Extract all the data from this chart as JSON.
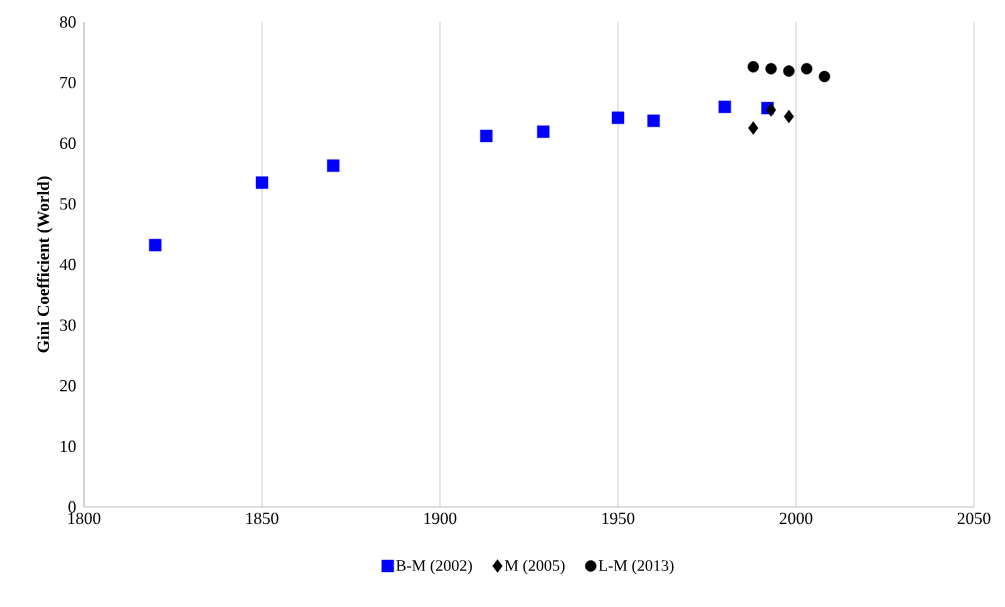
{
  "chart_data": {
    "type": "scatter",
    "ylabel": "Gini Coefficient (World)",
    "xlim": [
      1800,
      2050
    ],
    "xticks": [
      1800,
      1850,
      1900,
      1950,
      2000,
      2050
    ],
    "ylim": [
      0,
      80
    ],
    "yticks": [
      0,
      10,
      20,
      30,
      40,
      50,
      60,
      70,
      80
    ],
    "grid": "x",
    "legend": "bottom",
    "series": [
      {
        "name": "B-M (2002)",
        "color": "#0000ff",
        "marker": "square",
        "x": [
          1820,
          1850,
          1870,
          1913,
          1929,
          1950,
          1960,
          1980,
          1992
        ],
        "values": [
          43.2,
          53.5,
          56.3,
          61.2,
          61.9,
          64.2,
          63.7,
          66,
          65.8
        ]
      },
      {
        "name": "M (2005)",
        "color": "#000000",
        "marker": "diamond",
        "x": [
          1988,
          1993,
          1998
        ],
        "values": [
          62.5,
          65.5,
          64.4
        ]
      },
      {
        "name": "L-M (2013)",
        "color": "#000000",
        "marker": "circle",
        "x": [
          1988,
          1993,
          1998,
          2003,
          2008
        ],
        "values": [
          72.6,
          72.3,
          71.9,
          72.3,
          71
        ]
      }
    ]
  }
}
